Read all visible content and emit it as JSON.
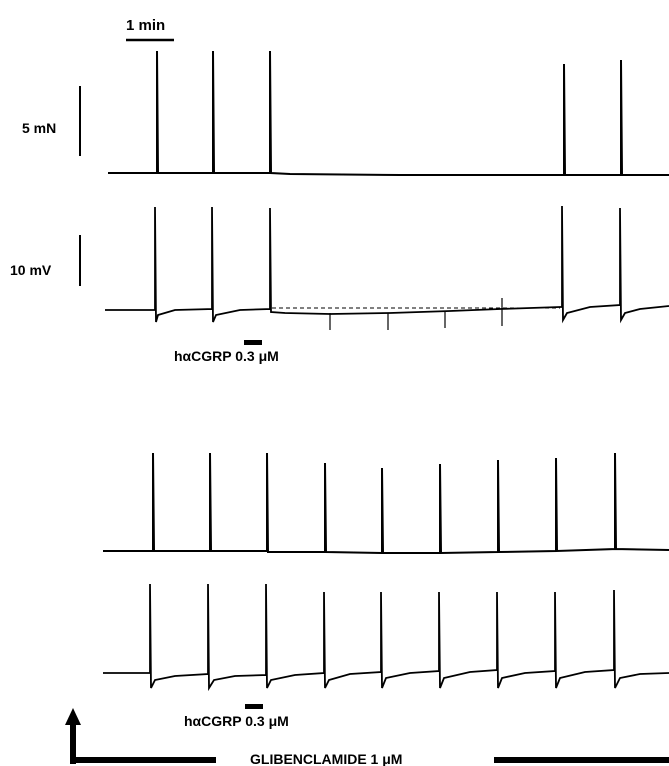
{
  "figure": {
    "timescale_label": "1 min",
    "force_scale_label": "5 mN",
    "voltage_scale_label": "10 mV",
    "drug_label_top": "hαCGRP 0.3 μM",
    "drug_label_bottom": "hαCGRP 0.3 μM",
    "background_label": "GLIBENCLAMIDE 1 μM"
  },
  "colors": {
    "trace": "#000000",
    "background": "#ffffff"
  }
}
